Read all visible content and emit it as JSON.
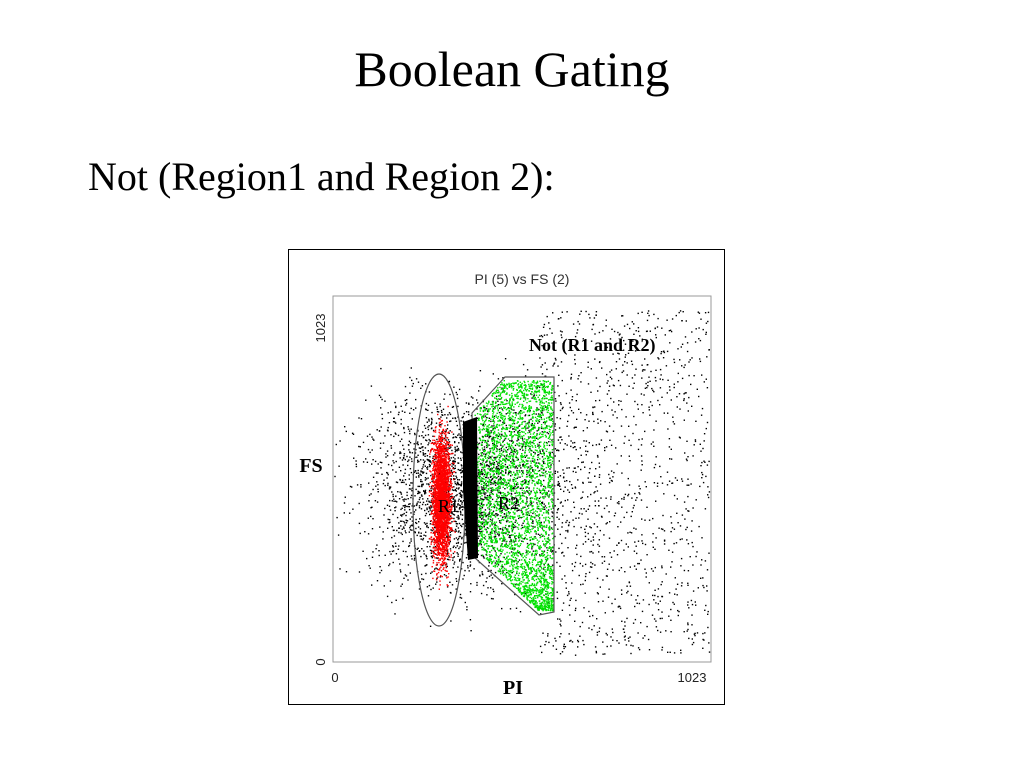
{
  "slide": {
    "title": "Boolean Gating",
    "subtitle": "Not (Region1 and Region 2):"
  },
  "plot": {
    "title": "PI (5) vs FS (2)",
    "xlabel": "PI",
    "ylabel": "FS",
    "x_ticks": [
      "0",
      "1023"
    ],
    "y_ticks": [
      "0",
      "1023"
    ],
    "region1_label": "R1",
    "region2_label": "R2",
    "annotation": "Not (R1 and R2)"
  },
  "colors": {
    "region1": "#ff0000",
    "region2": "#00e000",
    "overlap": "#000000",
    "background_dots": "#000000"
  }
}
